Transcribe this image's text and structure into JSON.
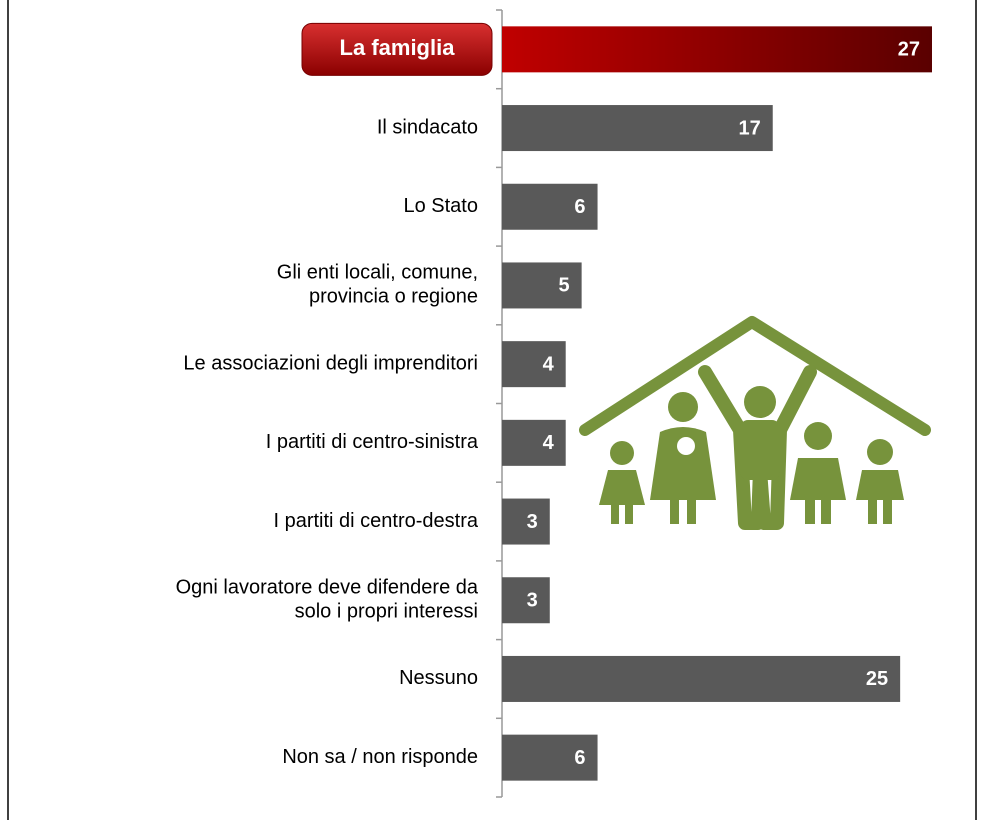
{
  "chart_data": {
    "type": "hbar",
    "categories": [
      "La famiglia",
      "Il sindacato",
      "Lo Stato",
      "Gli enti locali, comune,\nprovincia o regione",
      "Le associazioni degli imprenditori",
      "I partiti di centro-sinistra",
      "I partiti di centro-destra",
      "Ogni lavoratore deve difendere da\nsolo i propri interessi",
      "Nessuno",
      "Non sa / non risponde"
    ],
    "values": [
      27,
      17,
      6,
      5,
      4,
      4,
      3,
      3,
      25,
      6
    ],
    "colors": [
      "#a00000",
      "#595959",
      "#595959",
      "#595959",
      "#595959",
      "#595959",
      "#595959",
      "#595959",
      "#595959",
      "#595959"
    ],
    "highlight": 0
  }
}
